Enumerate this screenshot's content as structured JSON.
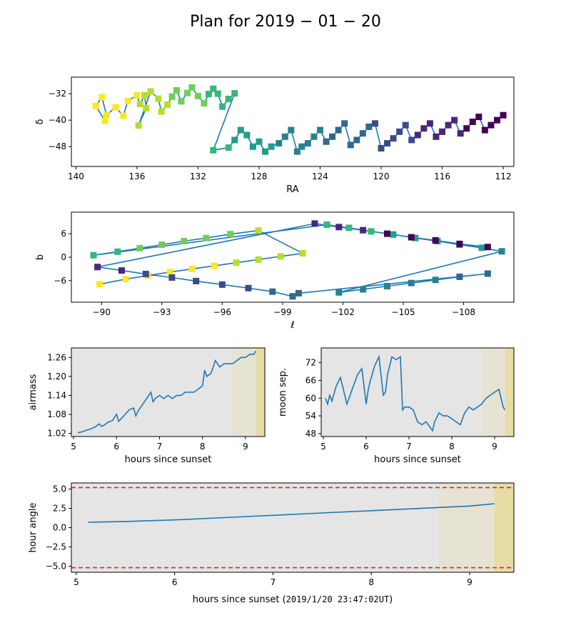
{
  "figure": {
    "title": "Plan for 2019 − 01 − 20",
    "colors": {
      "line": "#1f77b4",
      "night": "#e5e5e5",
      "twilight1": "#e6e3d4",
      "twilight2": "#e8dca6",
      "limit": "#d62728"
    }
  },
  "chart_data": [
    {
      "id": "sky",
      "type": "line",
      "xlabel": "RA",
      "ylabel": "δ",
      "xlim": [
        140.3,
        111.3
      ],
      "ylim": [
        -54.0,
        -27.0
      ],
      "xticks": [
        140,
        136,
        132,
        128,
        124,
        120,
        116,
        112
      ],
      "yticks": [
        -32,
        -40,
        -48
      ],
      "x": [
        138.1,
        138.7,
        138.3,
        138.0,
        137.4,
        136.9,
        136.6,
        136.0,
        135.8,
        135.5,
        135.4,
        135.9,
        135.1,
        134.6,
        134.4,
        134.0,
        133.7,
        133.4,
        133.1,
        132.7,
        132.4,
        132.0,
        131.6,
        131.3,
        131.0,
        130.7,
        130.4,
        130.0,
        129.6,
        131.0,
        130.0,
        129.6,
        129.2,
        128.8,
        128.4,
        128.0,
        127.6,
        127.2,
        126.7,
        126.3,
        125.9,
        125.5,
        125.2,
        124.8,
        124.4,
        124.0,
        123.6,
        123.2,
        122.8,
        122.4,
        122.0,
        121.6,
        121.2,
        120.8,
        120.4,
        120.0,
        119.6,
        119.2,
        118.8,
        118.4,
        118.0,
        117.6,
        117.2,
        116.8,
        116.4,
        116.0,
        115.6,
        115.2,
        114.8,
        114.4,
        114.0,
        113.6,
        113.2,
        112.8,
        112.4,
        112.0
      ],
      "y": [
        -40.2,
        -35.7,
        -33.0,
        -38.5,
        -36.1,
        -38.7,
        -34.2,
        -32.5,
        -35.1,
        -32.5,
        -36.4,
        -41.6,
        -31.3,
        -33.5,
        -37.4,
        -35.3,
        -32.9,
        -31.0,
        -34.3,
        -31.8,
        -30.1,
        -32.7,
        -34.9,
        -32.1,
        -30.5,
        -32.0,
        -35.9,
        -33.6,
        -31.9,
        -49.1,
        -48.3,
        -46.0,
        -43.0,
        -44.5,
        -48.0,
        -46.5,
        -49.5,
        -48.0,
        -47.0,
        -45.0,
        -43.0,
        -49.5,
        -48.0,
        -47.0,
        -45.0,
        -43.0,
        -46.5,
        -45.0,
        -43.0,
        -41.0,
        -47.5,
        -46.0,
        -44.0,
        -42.0,
        -41.0,
        -48.5,
        -47.0,
        -45.5,
        -43.5,
        -41.5,
        -46.0,
        -44.5,
        -42.5,
        -41.0,
        -45.0,
        -43.5,
        -41.5,
        -40.0,
        -44.0,
        -42.5,
        -40.5,
        -39.0,
        -43.0,
        -41.5,
        -40.0,
        -38.5
      ]
    },
    {
      "id": "galactic",
      "type": "line",
      "xlabel": "ℓ",
      "ylabel": "b",
      "xlim": [
        -88.5,
        -110.5
      ],
      "ylim": [
        -11.5,
        11.5
      ],
      "xticks": [
        -90,
        -93,
        -96,
        -99,
        -102,
        -105,
        -108
      ],
      "yticks": [
        6,
        0,
        -6
      ],
      "x": [
        -89.9,
        -91.2,
        -92.3,
        -93.4,
        -94.5,
        -95.6,
        -96.7,
        -97.8,
        -98.9,
        -100.0,
        -97.8,
        -96.4,
        -95.2,
        -94.1,
        -93.0,
        -91.9,
        -90.8,
        -89.6,
        -101.2,
        -102.3,
        -103.4,
        -104.5,
        -105.6,
        -106.7,
        -107.8,
        -108.9,
        -109.9,
        -101.8,
        -103.0,
        -104.2,
        -105.4,
        -106.6,
        -107.8,
        -109.2,
        -99.8,
        -99.5,
        -98.5,
        -97.3,
        -96.0,
        -94.7,
        -93.5,
        -92.2,
        -91.0,
        -89.8,
        -100.6,
        -101.8,
        -103.0,
        -104.2,
        -105.4,
        -106.6,
        -107.8,
        -109.2
      ],
      "y": [
        -6.9,
        -5.6,
        -4.7,
        -3.8,
        -3.0,
        -2.2,
        -1.4,
        -0.6,
        0.2,
        1.0,
        6.8,
        5.9,
        4.9,
        4.1,
        3.2,
        2.3,
        1.4,
        0.5,
        8.3,
        7.5,
        6.6,
        5.8,
        4.9,
        4.1,
        3.2,
        2.4,
        1.5,
        -9.0,
        -8.2,
        -7.4,
        -6.6,
        -5.8,
        -5.0,
        -4.2,
        -9.2,
        -10.0,
        -8.8,
        -7.9,
        -7.0,
        -6.1,
        -5.2,
        -4.3,
        -3.4,
        -2.5,
        8.6,
        7.7,
        6.9,
        6.0,
        5.1,
        4.3,
        3.4,
        2.6
      ]
    },
    {
      "id": "airmass",
      "type": "line",
      "xlabel": "hours since sunset",
      "ylabel": "airmass",
      "xlim": [
        4.95,
        9.45
      ],
      "ylim": [
        1.01,
        1.29
      ],
      "xticks": [
        5,
        6,
        7,
        8,
        9
      ],
      "yticks": [
        1.02,
        1.08,
        1.14,
        1.2,
        1.26
      ],
      "shading": [
        {
          "from": 4.95,
          "to": 8.68,
          "kind": "night"
        },
        {
          "from": 8.68,
          "to": 9.25,
          "kind": "twilight1"
        },
        {
          "from": 9.25,
          "to": 9.45,
          "kind": "twilight2"
        }
      ],
      "x": [
        5.1,
        5.2,
        5.3,
        5.4,
        5.5,
        5.6,
        5.65,
        5.7,
        5.8,
        5.9,
        6.0,
        6.05,
        6.1,
        6.2,
        6.3,
        6.4,
        6.45,
        6.5,
        6.6,
        6.7,
        6.8,
        6.85,
        6.9,
        7.0,
        7.1,
        7.2,
        7.3,
        7.4,
        7.5,
        7.6,
        7.7,
        7.8,
        7.9,
        8.0,
        8.05,
        8.1,
        8.2,
        8.3,
        8.4,
        8.5,
        8.6,
        8.7,
        8.8,
        8.9,
        9.0,
        9.1,
        9.2,
        9.24
      ],
      "y": [
        1.022,
        1.025,
        1.03,
        1.034,
        1.04,
        1.05,
        1.042,
        1.045,
        1.055,
        1.06,
        1.08,
        1.058,
        1.065,
        1.08,
        1.095,
        1.1,
        1.075,
        1.09,
        1.11,
        1.13,
        1.15,
        1.12,
        1.13,
        1.14,
        1.13,
        1.14,
        1.13,
        1.14,
        1.14,
        1.15,
        1.15,
        1.15,
        1.16,
        1.17,
        1.22,
        1.2,
        1.21,
        1.25,
        1.23,
        1.24,
        1.24,
        1.24,
        1.25,
        1.26,
        1.26,
        1.27,
        1.27,
        1.28
      ]
    },
    {
      "id": "moonsep",
      "type": "line",
      "xlabel": "hours since sunset",
      "ylabel": "moon sep.",
      "xlim": [
        4.95,
        9.45
      ],
      "ylim": [
        47.0,
        77.0
      ],
      "xticks": [
        5,
        6,
        7,
        8,
        9
      ],
      "yticks": [
        48,
        54,
        60,
        66,
        72
      ],
      "shading": [
        {
          "from": 4.95,
          "to": 8.68,
          "kind": "night"
        },
        {
          "from": 8.68,
          "to": 9.25,
          "kind": "twilight1"
        },
        {
          "from": 9.25,
          "to": 9.45,
          "kind": "twilight2"
        }
      ],
      "x": [
        5.05,
        5.1,
        5.15,
        5.2,
        5.3,
        5.4,
        5.5,
        5.55,
        5.6,
        5.7,
        5.8,
        5.9,
        6.0,
        6.05,
        6.1,
        6.2,
        6.3,
        6.4,
        6.45,
        6.5,
        6.6,
        6.7,
        6.8,
        6.85,
        6.9,
        7.0,
        7.1,
        7.2,
        7.3,
        7.4,
        7.5,
        7.55,
        7.6,
        7.7,
        7.8,
        7.9,
        8.0,
        8.1,
        8.2,
        8.3,
        8.4,
        8.5,
        8.6,
        8.7,
        8.8,
        8.9,
        9.0,
        9.1,
        9.2,
        9.24
      ],
      "y": [
        60,
        58,
        61,
        59,
        64,
        67,
        61,
        58,
        60,
        64,
        68,
        70,
        58,
        63,
        66,
        71,
        74,
        61,
        62,
        68,
        74,
        73,
        74,
        56,
        57,
        57,
        56,
        52,
        51,
        52,
        50,
        49,
        52,
        55,
        54,
        54,
        53,
        52,
        51,
        55,
        57,
        56,
        57,
        58,
        60,
        61,
        62,
        63,
        57,
        56
      ]
    },
    {
      "id": "hourangle",
      "type": "line",
      "xlabel": "hours since sunset",
      "ylabel": "hour angle",
      "xlim": [
        4.95,
        9.45
      ],
      "ylim": [
        -5.8,
        5.8
      ],
      "xticks": [
        5,
        6,
        7,
        8,
        9
      ],
      "yticks": [
        5.0,
        2.5,
        0.0,
        -2.5,
        -5.0
      ],
      "limits": [
        5.2,
        -5.2
      ],
      "shading": [
        {
          "from": 4.95,
          "to": 8.68,
          "kind": "night"
        },
        {
          "from": 8.68,
          "to": 9.25,
          "kind": "twilight1"
        },
        {
          "from": 9.25,
          "to": 9.45,
          "kind": "twilight2"
        }
      ],
      "x": [
        5.12,
        5.5,
        6.0,
        6.5,
        7.0,
        7.5,
        8.0,
        8.5,
        9.0,
        9.25
      ],
      "y": [
        0.7,
        0.8,
        1.0,
        1.3,
        1.6,
        1.9,
        2.2,
        2.5,
        2.8,
        3.1
      ]
    }
  ]
}
